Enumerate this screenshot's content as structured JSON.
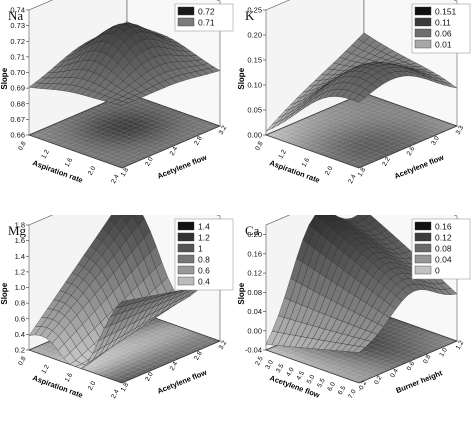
{
  "chart_data": [
    {
      "type": "surface3d",
      "title": "Na",
      "xlabel": "Aspiration rate",
      "ylabel": "Acetylene flow",
      "zlabel": "Slope",
      "x_ticks": [
        "0.8",
        "1.2",
        "1.6",
        "2.0",
        "2.4"
      ],
      "y_ticks": [
        "1.8",
        "2.0",
        "2.4",
        "2.8",
        "3.2"
      ],
      "z_ticks": [
        "0.66",
        "0.67",
        "0.68",
        "0.69",
        "0.70",
        "0.71",
        "0.72",
        "0.73",
        "0.74"
      ],
      "zlim": [
        0.66,
        0.74
      ],
      "peak": {
        "x": 1.6,
        "y": 2.5,
        "z": 0.725
      },
      "corner_values": [
        0.7,
        0.69,
        0.695,
        0.705
      ],
      "legend": [
        {
          "label": "0.72",
          "color": "#1a1a1a"
        },
        {
          "label": "0.71",
          "color": "#7a7a7a"
        }
      ],
      "legend_position": "top-right",
      "surface_shape": "dome"
    },
    {
      "type": "surface3d",
      "title": "K",
      "xlabel": "Aspiration rate",
      "ylabel": "Acetylene flow",
      "zlabel": "Slope",
      "x_ticks": [
        "0.8",
        "1.2",
        "1.6",
        "2.0",
        "2.4"
      ],
      "y_ticks": [
        "1.8",
        "2.2",
        "2.6",
        "3.0",
        "3.3"
      ],
      "z_ticks": [
        "0.00",
        "0.05",
        "0.10",
        "0.15",
        "0.20",
        "0.25"
      ],
      "zlim": [
        0.0,
        0.25
      ],
      "peak": {
        "x": 2.2,
        "y": 2.2,
        "z": 0.16
      },
      "corner_values": [
        0.1,
        0.0,
        0.06,
        0.12
      ],
      "legend": [
        {
          "label": "0.151",
          "color": "#111111"
        },
        {
          "label": "0.11",
          "color": "#3a3a3a"
        },
        {
          "label": "0.06",
          "color": "#6e6e6e"
        },
        {
          "label": "0.01",
          "color": "#a8a8a8"
        }
      ],
      "legend_position": "top-right",
      "surface_shape": "saddle-drop"
    },
    {
      "type": "surface3d",
      "title": "Mg",
      "xlabel": "Aspiration rate",
      "ylabel": "Acetylene flow",
      "zlabel": "Slope",
      "x_ticks": [
        "0.8",
        "1.2",
        "1.6",
        "2.0",
        "2.4"
      ],
      "y_ticks": [
        "1.8",
        "2.0",
        "2.4",
        "2.8",
        "3.2"
      ],
      "z_ticks": [
        "0.2",
        "0.4",
        "0.6",
        "0.8",
        "1.0",
        "1.2",
        "1.4",
        "1.6",
        "1.8"
      ],
      "zlim": [
        0.2,
        1.8
      ],
      "peak": {
        "x": 2.4,
        "y": 3.2,
        "z": 1.7
      },
      "corner_values": [
        1.3,
        0.4,
        1.0,
        1.7
      ],
      "legend": [
        {
          "label": "1.4",
          "color": "#111111"
        },
        {
          "label": "1.2",
          "color": "#333333"
        },
        {
          "label": "1",
          "color": "#555555"
        },
        {
          "label": "0.8",
          "color": "#777777"
        },
        {
          "label": "0.6",
          "color": "#999999"
        },
        {
          "label": "0.4",
          "color": "#bbbbbb"
        }
      ],
      "legend_position": "top-right",
      "surface_shape": "valley"
    },
    {
      "type": "surface3d",
      "title": "Ca",
      "xlabel": "Acetylene flow",
      "ylabel": "Burner height",
      "zlabel": "Slope",
      "x_ticks": [
        "2.5",
        "3.0",
        "3.5",
        "4.0",
        "4.5",
        "5.0",
        "5.5",
        "6.0",
        "6.5",
        "7.0"
      ],
      "y_ticks": [
        "-0.2",
        "0.2",
        "0.4",
        "0.6",
        "0.8",
        "1.0",
        "1.2"
      ],
      "z_ticks": [
        "-0.04",
        "0.00",
        "0.04",
        "0.08",
        "0.12",
        "0.16",
        "0.20"
      ],
      "zlim": [
        -0.04,
        0.22
      ],
      "peak": {
        "x": 6.0,
        "y": 0.6,
        "z": 0.2
      },
      "corner_values": [
        0.02,
        -0.04,
        0.05,
        0.16
      ],
      "legend": [
        {
          "label": "0.16",
          "color": "#111111"
        },
        {
          "label": "0.12",
          "color": "#3d3d3d"
        },
        {
          "label": "0.08",
          "color": "#6a6a6a"
        },
        {
          "label": "0.04",
          "color": "#969696"
        },
        {
          "label": "0",
          "color": "#c2c2c2"
        }
      ],
      "legend_position": "top-right",
      "surface_shape": "ridge"
    }
  ]
}
